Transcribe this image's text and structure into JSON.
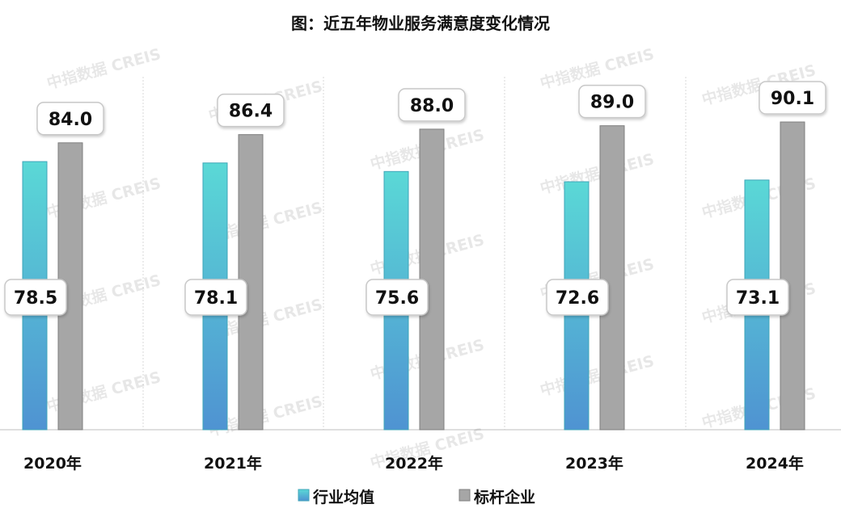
{
  "chart_data": {
    "type": "bar",
    "title": "图：近五年物业服务满意度变化情况",
    "categories": [
      "2020年",
      "2021年",
      "2022年",
      "2023年",
      "2024年"
    ],
    "series": [
      {
        "name": "行业均值",
        "values": [
          78.5,
          78.1,
          75.6,
          72.6,
          73.1
        ],
        "color_top": "#5ad8d6",
        "color_bottom": "#4f93d2"
      },
      {
        "name": "标杆企业",
        "values": [
          84.0,
          86.4,
          88.0,
          89.0,
          90.1
        ],
        "color": "#a6a6a6"
      }
    ],
    "ylim": [
      0,
      120
    ],
    "grid": "vertical separators",
    "legend": "bottom",
    "data_labels": true
  },
  "watermark": "中指数据 CREIS"
}
